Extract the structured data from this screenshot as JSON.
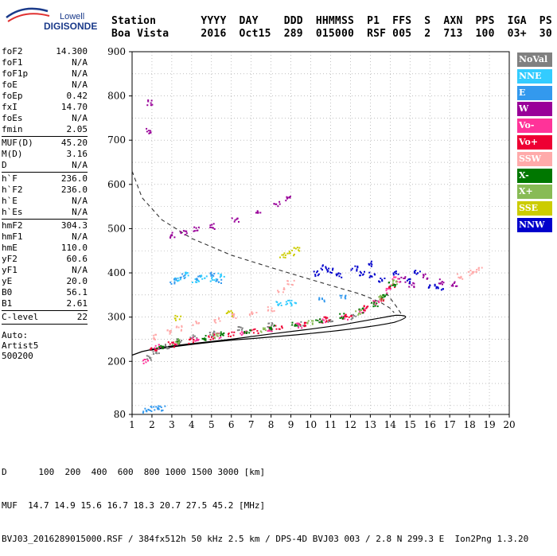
{
  "logo": {
    "line1": "Lowell",
    "line2": "DIGISONDE"
  },
  "header": {
    "columns": [
      "Station",
      "YYYY",
      "DAY",
      "DDD",
      "HHMMSS",
      "P1",
      "FFS",
      "S",
      "AXN",
      "PPS",
      "IGA",
      "PS"
    ],
    "values": [
      "Boa Vista",
      "2016",
      "Oct15",
      "289",
      "015000",
      "RSF",
      "005",
      "2",
      "713",
      "100",
      "03+",
      "30"
    ]
  },
  "params": {
    "group1": [
      {
        "key": "foF2",
        "value": "14.300"
      },
      {
        "key": "foF1",
        "value": "N/A"
      },
      {
        "key": "foF1p",
        "value": "N/A"
      },
      {
        "key": "foE",
        "value": "N/A"
      },
      {
        "key": "foEp",
        "value": "0.42"
      },
      {
        "key": "fxI",
        "value": "14.70"
      },
      {
        "key": "foEs",
        "value": "N/A"
      },
      {
        "key": "fmin",
        "value": "2.05"
      }
    ],
    "group2": [
      {
        "key": "MUF(D)",
        "value": "45.20"
      },
      {
        "key": "M(D)",
        "value": "3.16"
      },
      {
        "key": "D",
        "value": "N/A"
      }
    ],
    "group3": [
      {
        "key": "h`F",
        "value": "236.0"
      },
      {
        "key": "h`F2",
        "value": "236.0"
      },
      {
        "key": "h`E",
        "value": "N/A"
      },
      {
        "key": "h`Es",
        "value": "N/A"
      }
    ],
    "group4": [
      {
        "key": "hmF2",
        "value": "304.3"
      },
      {
        "key": "hmF1",
        "value": "N/A"
      },
      {
        "key": "hmE",
        "value": "110.0"
      },
      {
        "key": "yF2",
        "value": "60.6"
      },
      {
        "key": "yF1",
        "value": "N/A"
      },
      {
        "key": "yE",
        "value": "20.0"
      },
      {
        "key": "B0",
        "value": "56.1"
      },
      {
        "key": "B1",
        "value": "2.61"
      }
    ],
    "group5": [
      {
        "key": "C-level",
        "value": "22"
      }
    ],
    "auto_label": "Auto:",
    "scaler": "Artist5",
    "code": "500200"
  },
  "legend": [
    {
      "label": "NoVal",
      "color": "#808080"
    },
    {
      "label": "NNE",
      "color": "#33ccff"
    },
    {
      "label": "E",
      "color": "#3399ee"
    },
    {
      "label": "W",
      "color": "#990099"
    },
    {
      "label": "Vo-",
      "color": "#ff3399"
    },
    {
      "label": "Vo+",
      "color": "#ee0033"
    },
    {
      "label": "SSW",
      "color": "#ffaaaa"
    },
    {
      "label": "X-",
      "color": "#007700"
    },
    {
      "label": "X+",
      "color": "#88bb55"
    },
    {
      "label": "SSE",
      "color": "#cccc00"
    },
    {
      "label": "NNW",
      "color": "#0000cc"
    }
  ],
  "footer": {
    "line1": "D      100  200  400  600  800 1000 1500 3000 [km]",
    "line2": "MUF  14.7 14.9 15.6 16.7 18.3 20.7 27.5 45.2 [MHz]",
    "line3": "BVJ03_2016289015000.RSF / 384fx512h 50 kHz 2.5 km / DPS-4D BVJ03 003 / 2.8 N 299.3 E  Ion2Png 1.3.20"
  },
  "chart_data": {
    "type": "scatter",
    "xlim": [
      1,
      20
    ],
    "ylim": [
      80,
      900
    ],
    "x_ticks": [
      1,
      2,
      3,
      4,
      5,
      6,
      7,
      8,
      9,
      10,
      11,
      12,
      13,
      14,
      15,
      16,
      17,
      18,
      19,
      20
    ],
    "y_ticks": [
      80,
      200,
      300,
      400,
      500,
      600,
      700,
      800,
      900
    ],
    "grid": "dotted",
    "legend_position": "right",
    "series": [
      {
        "name": "NoVal",
        "values": [
          [
            1.9,
            208
          ],
          [
            2.2,
            222
          ],
          [
            2.8,
            232
          ],
          [
            3.4,
            245
          ],
          [
            4.1,
            255
          ],
          [
            5.0,
            262
          ],
          [
            6.5,
            272
          ],
          [
            8.0,
            282
          ],
          [
            9.5,
            285
          ],
          [
            11.0,
            295
          ],
          [
            12.2,
            300
          ]
        ]
      },
      {
        "name": "NNE",
        "values": [
          [
            3.3,
            383
          ],
          [
            3.7,
            395
          ],
          [
            4.2,
            380
          ],
          [
            4.6,
            392
          ],
          [
            5.1,
            385
          ],
          [
            5.5,
            396
          ],
          [
            8.4,
            332
          ],
          [
            8.9,
            332
          ],
          [
            9.1,
            330
          ]
        ]
      },
      {
        "name": "E",
        "values": [
          [
            1.7,
            88
          ],
          [
            2.0,
            92
          ],
          [
            2.3,
            97
          ],
          [
            2.5,
            94
          ],
          [
            3.1,
            381
          ],
          [
            3.6,
            392
          ],
          [
            4.4,
            388
          ],
          [
            5.0,
            396
          ],
          [
            5.4,
            382
          ],
          [
            10.6,
            340
          ],
          [
            11.6,
            345
          ]
        ]
      },
      {
        "name": "W",
        "values": [
          [
            1.9,
            720
          ],
          [
            1.9,
            785
          ],
          [
            3.1,
            485
          ],
          [
            3.6,
            492
          ],
          [
            4.2,
            498
          ],
          [
            5.0,
            505
          ],
          [
            6.2,
            520
          ],
          [
            7.4,
            540
          ],
          [
            8.3,
            555
          ],
          [
            8.9,
            568
          ],
          [
            14.6,
            385
          ],
          [
            15.1,
            372
          ],
          [
            15.8,
            392
          ],
          [
            16.6,
            380
          ],
          [
            17.2,
            375
          ]
        ]
      },
      {
        "name": "Vo-",
        "values": [
          [
            1.7,
            199
          ],
          [
            2.3,
            232
          ],
          [
            3.2,
            242
          ],
          [
            4.2,
            250
          ],
          [
            5.3,
            258
          ],
          [
            6.6,
            265
          ],
          [
            8.0,
            272
          ],
          [
            9.4,
            280
          ],
          [
            10.6,
            290
          ],
          [
            11.7,
            300
          ],
          [
            12.6,
            315
          ],
          [
            13.3,
            332
          ],
          [
            13.9,
            360
          ],
          [
            14.3,
            385
          ]
        ]
      },
      {
        "name": "Vo+",
        "values": [
          [
            2.1,
            230
          ],
          [
            3.0,
            238
          ],
          [
            4.0,
            246
          ],
          [
            5.0,
            254
          ],
          [
            6.0,
            262
          ],
          [
            7.2,
            268
          ],
          [
            8.4,
            276
          ],
          [
            9.6,
            284
          ],
          [
            10.8,
            296
          ],
          [
            11.9,
            305
          ],
          [
            12.8,
            320
          ],
          [
            13.5,
            340
          ],
          [
            14.1,
            372
          ]
        ]
      },
      {
        "name": "SSW",
        "values": [
          [
            2.1,
            255
          ],
          [
            2.8,
            268
          ],
          [
            3.4,
            275
          ],
          [
            4.2,
            285
          ],
          [
            5.3,
            292
          ],
          [
            6.2,
            302
          ],
          [
            7.1,
            310
          ],
          [
            8.0,
            318
          ],
          [
            8.5,
            360
          ],
          [
            9.0,
            378
          ],
          [
            17.5,
            392
          ],
          [
            18.1,
            400
          ],
          [
            18.5,
            408
          ]
        ]
      },
      {
        "name": "X-",
        "values": [
          [
            2.4,
            235
          ],
          [
            3.4,
            245
          ],
          [
            4.6,
            252
          ],
          [
            5.6,
            260
          ],
          [
            6.8,
            268
          ],
          [
            8.0,
            276
          ],
          [
            9.2,
            283
          ],
          [
            10.4,
            292
          ],
          [
            11.6,
            302
          ],
          [
            12.6,
            315
          ],
          [
            13.2,
            330
          ],
          [
            13.7,
            350
          ],
          [
            14.1,
            375
          ]
        ]
      },
      {
        "name": "X+",
        "values": [
          [
            3.2,
            243
          ],
          [
            5.2,
            258
          ],
          [
            7.6,
            272
          ],
          [
            10.0,
            288
          ],
          [
            12.4,
            310
          ],
          [
            13.6,
            345
          ],
          [
            14.2,
            380
          ]
        ]
      },
      {
        "name": "SSE",
        "values": [
          [
            8.6,
            440
          ],
          [
            9.0,
            445
          ],
          [
            9.3,
            452
          ],
          [
            3.3,
            298
          ],
          [
            5.9,
            308
          ]
        ]
      },
      {
        "name": "NNW",
        "values": [
          [
            10.3,
            398
          ],
          [
            10.7,
            412
          ],
          [
            11.0,
            405
          ],
          [
            11.4,
            395
          ],
          [
            12.2,
            410
          ],
          [
            12.6,
            400
          ],
          [
            13.0,
            420
          ],
          [
            13.1,
            395
          ],
          [
            13.6,
            385
          ],
          [
            14.3,
            398
          ],
          [
            14.9,
            382
          ],
          [
            15.4,
            400
          ],
          [
            16.1,
            372
          ],
          [
            16.5,
            366
          ]
        ]
      }
    ],
    "profile_line": [
      [
        1.0,
        214
      ],
      [
        1.5,
        222
      ],
      [
        2.5,
        232
      ],
      [
        4.0,
        240
      ],
      [
        6.0,
        250
      ],
      [
        8.0,
        262
      ],
      [
        10.0,
        273
      ],
      [
        11.5,
        282
      ],
      [
        12.5,
        290
      ],
      [
        13.5,
        298
      ],
      [
        14.0,
        302
      ],
      [
        14.3,
        304.3
      ]
    ],
    "profile_dashed": [
      [
        1.0,
        630
      ],
      [
        1.5,
        570
      ],
      [
        2.5,
        520
      ],
      [
        4.0,
        478
      ],
      [
        6.0,
        440
      ],
      [
        8.0,
        412
      ],
      [
        10.0,
        385
      ],
      [
        11.5,
        365
      ],
      [
        12.5,
        352
      ],
      [
        13.5,
        334
      ],
      [
        14.0,
        320
      ],
      [
        14.2,
        310
      ]
    ],
    "profile_lower_dashed": [
      [
        13.8,
        355
      ],
      [
        14.3,
        325
      ],
      [
        14.6,
        304.3
      ]
    ]
  }
}
